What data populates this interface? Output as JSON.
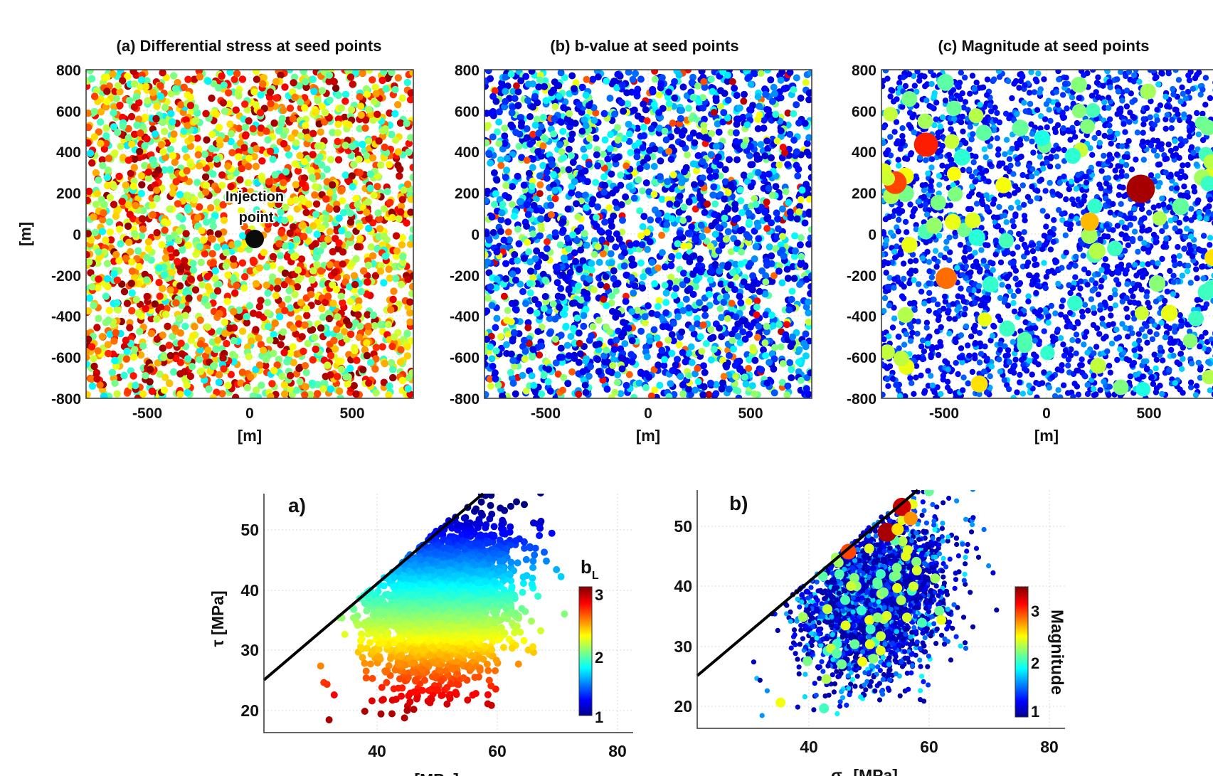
{
  "chart_data": [
    {
      "type": "scatter",
      "title": "(a) Differential stress at seed points",
      "xlabel": "[m]",
      "ylabel": "[m]",
      "xlim": [
        -800,
        800
      ],
      "ylim": [
        -800,
        800
      ],
      "xticks": [
        -500,
        0,
        500
      ],
      "yticks": [
        800,
        600,
        400,
        200,
        0,
        -200,
        -400,
        -600,
        -800
      ],
      "grid": true,
      "colormap": "jet",
      "annotation": "Injection point",
      "injection_point": {
        "x": 20,
        "y": -25
      },
      "points": [
        {
          "x": -560,
          "y": 600
        },
        {
          "x": -240,
          "y": 280
        },
        {
          "x": 120,
          "y": -300
        },
        {
          "x": 500,
          "y": 450
        },
        {
          "x": -400,
          "y": -600
        },
        {
          "x": 300,
          "y": 100
        },
        {
          "x": 700,
          "y": -700
        },
        {
          "x": -700,
          "y": 200
        }
      ]
    },
    {
      "type": "scatter",
      "title": "(b) b-value at seed points",
      "xlabel": "[m]",
      "ylabel": "",
      "xlim": [
        -800,
        800
      ],
      "ylim": [
        -800,
        800
      ],
      "xticks": [
        -500,
        0,
        500
      ],
      "yticks": [
        800,
        600,
        400,
        200,
        0,
        -200,
        -400,
        -600,
        -800
      ],
      "grid": true,
      "colormap": "jet",
      "points": [
        {
          "x": -600,
          "y": 500
        },
        {
          "x": -100,
          "y": -200
        },
        {
          "x": 250,
          "y": 300
        },
        {
          "x": 600,
          "y": -500
        },
        {
          "x": -300,
          "y": -650
        },
        {
          "x": 0,
          "y": -300
        }
      ]
    },
    {
      "type": "scatter",
      "title": "(c) Magnitude at seed points",
      "xlabel": "[m]",
      "ylabel": "",
      "xlim": [
        -800,
        760
      ],
      "ylim": [
        -800,
        800
      ],
      "xticks": [
        -500,
        0,
        500
      ],
      "yticks": [
        800,
        600,
        400,
        200,
        0,
        -200,
        -400,
        -600,
        -800
      ],
      "grid": true,
      "colormap": "jet",
      "large_events": [
        {
          "x": 420,
          "y": 220,
          "magnitude": 3.4
        },
        {
          "x": -590,
          "y": 435,
          "magnitude": 3.1
        },
        {
          "x": -735,
          "y": 250,
          "magnitude": 3.0
        },
        {
          "x": -495,
          "y": -215,
          "magnitude": 2.9
        },
        {
          "x": 180,
          "y": 60,
          "magnitude": 2.7
        },
        {
          "x": -340,
          "y": -730,
          "magnitude": 2.6
        },
        {
          "x": 760,
          "y": -115,
          "magnitude": 2.6
        },
        {
          "x": 425,
          "y": -385,
          "magnitude": 2.4
        },
        {
          "x": -770,
          "y": 270,
          "magnitude": 2.4
        }
      ]
    },
    {
      "type": "scatter",
      "title": "a)",
      "xlabel": "σ_n [MPa]",
      "ylabel": "τ [MPa]",
      "xlim": [
        22,
        84
      ],
      "ylim": [
        16.5,
        56
      ],
      "xticks": [
        40,
        60,
        80
      ],
      "yticks": [
        50,
        40,
        30,
        20
      ],
      "grid": true,
      "failure_line": {
        "x": [
          22,
          57.5
        ],
        "y": [
          25,
          56
        ]
      },
      "colorbar": {
        "label": "b",
        "label_sub": "L",
        "min": 1,
        "max": 3,
        "ticks": [
          3,
          2,
          1
        ]
      }
    },
    {
      "type": "scatter",
      "title": "b)",
      "xlabel": "σ_n [MPa]",
      "ylabel": "",
      "xlim": [
        22,
        84
      ],
      "ylim": [
        16.5,
        56
      ],
      "xticks": [
        40,
        60,
        80
      ],
      "yticks": [
        50,
        40,
        30,
        20
      ],
      "grid": true,
      "failure_line": {
        "x": [
          22,
          58
        ],
        "y": [
          25,
          56
        ]
      },
      "colorbar": {
        "label": "Magnitude",
        "min": 0.9,
        "max": 3.5,
        "ticks": [
          3,
          2,
          1
        ]
      },
      "large_events": [
        {
          "x": 56.5,
          "y": 53.2,
          "magnitude": 3.3
        },
        {
          "x": 54,
          "y": 49,
          "magnitude": 3.4
        },
        {
          "x": 47.5,
          "y": 45.8,
          "magnitude": 3.0
        },
        {
          "x": 55.8,
          "y": 49.5,
          "magnitude": 2.6
        },
        {
          "x": 58,
          "y": 51.3,
          "magnitude": 2.8
        }
      ]
    }
  ]
}
